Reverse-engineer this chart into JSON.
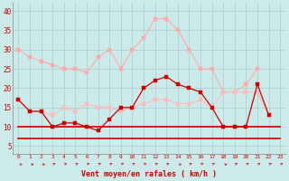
{
  "hours": [
    0,
    1,
    2,
    3,
    4,
    5,
    6,
    7,
    8,
    9,
    10,
    11,
    12,
    13,
    14,
    15,
    16,
    17,
    18,
    19,
    20,
    21,
    22,
    23
  ],
  "rafales_high": [
    30,
    28,
    27,
    26,
    25,
    25,
    24,
    28,
    30,
    25,
    30,
    33,
    38,
    38,
    35,
    30,
    25,
    25,
    19,
    19,
    21,
    25,
    null,
    null
  ],
  "rafales_mid": [
    17,
    14,
    14,
    13,
    15,
    14,
    16,
    15,
    15,
    14,
    15,
    16,
    17,
    17,
    16,
    16,
    17,
    15,
    19,
    19,
    19,
    19,
    13,
    null
  ],
  "moyen": [
    17,
    14,
    14,
    10,
    11,
    11,
    10,
    9,
    12,
    15,
    15,
    20,
    22,
    23,
    21,
    20,
    19,
    15,
    10,
    10,
    10,
    21,
    13,
    null
  ],
  "min_line": [
    10,
    10,
    10,
    10,
    10,
    10,
    10,
    10,
    10,
    10,
    10,
    10,
    10,
    10,
    10,
    10,
    10,
    10,
    10,
    10,
    10,
    10,
    10,
    10
  ],
  "flat_bottom": [
    7,
    7,
    7,
    7,
    7,
    7,
    7,
    7,
    7,
    7,
    7,
    7,
    7,
    7,
    7,
    7,
    7,
    7,
    7,
    7,
    7,
    7,
    7,
    7
  ],
  "wind_dirs": [
    0,
    0,
    0,
    45,
    45,
    45,
    45,
    45,
    45,
    45,
    45,
    45,
    45,
    45,
    0,
    45,
    45,
    45,
    0,
    45,
    45,
    45,
    45,
    45
  ],
  "bg_color": "#cceaea",
  "grid_color": "#aacccc",
  "color_pink_light": "#ffaaaa",
  "color_pink_mid": "#ffbbbb",
  "color_red_dark": "#cc0000",
  "color_red_mid": "#dd4444",
  "xlabel": "Vent moyen/en rafales ( km/h )",
  "ylim": [
    3,
    42
  ],
  "yticks": [
    5,
    10,
    15,
    20,
    25,
    30,
    35,
    40
  ]
}
